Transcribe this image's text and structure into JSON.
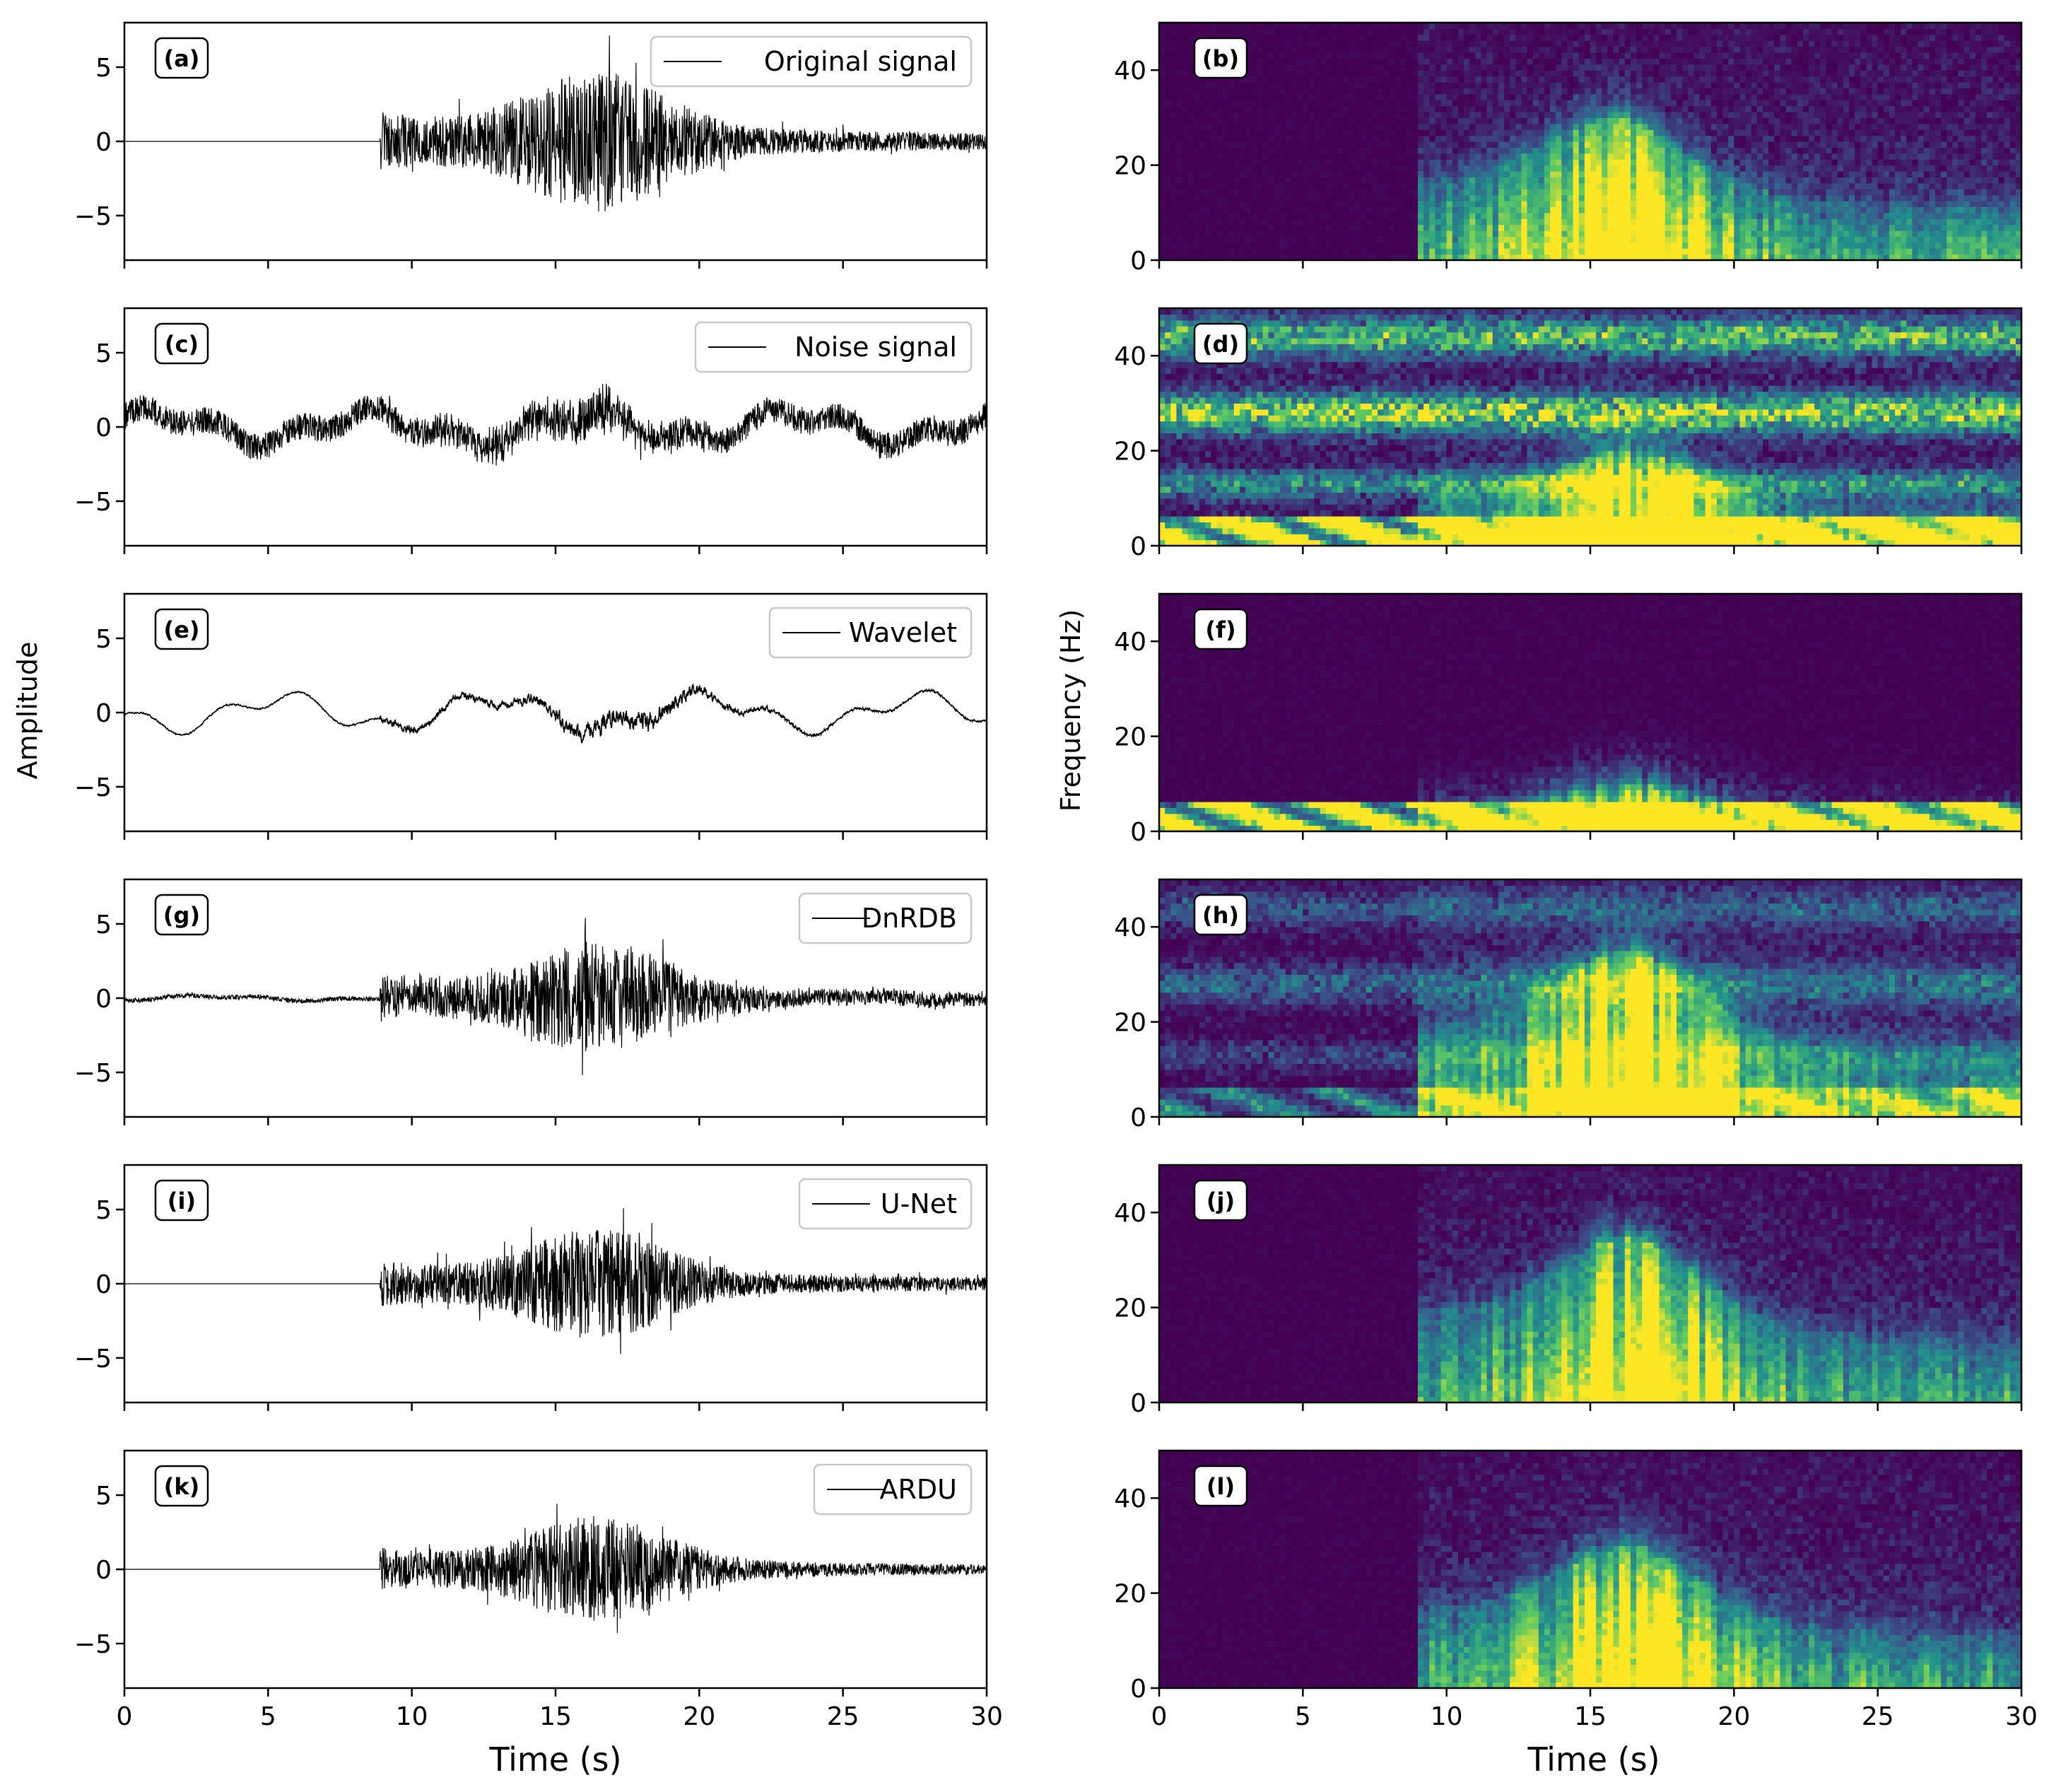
{
  "figure": {
    "x_axis_label": "Time (s)",
    "left_y_label": "Amplitude",
    "right_y_label": "Frequency (Hz)"
  },
  "chart_data": [
    {
      "type": "line",
      "panel": "(a)",
      "legend": "Original signal",
      "xlim": [
        0,
        30
      ],
      "ylim": [
        -8,
        8
      ],
      "x_ticks": [
        "0",
        "5",
        "10",
        "15",
        "20",
        "25",
        "30"
      ],
      "y_ticks": [
        "5",
        "0",
        "−5"
      ],
      "onset_s": 8.9,
      "peak_time_s": 16.5,
      "envelope_peak": 6.0,
      "decay_s": 7.0,
      "pre_noise": 0.0,
      "coda": 0.3,
      "bg_amp": 0.0,
      "hf": 0.9,
      "seed": 11
    },
    {
      "type": "line",
      "panel": "(c)",
      "legend": "Noise signal",
      "xlim": [
        0,
        30
      ],
      "ylim": [
        -8,
        8
      ],
      "x_ticks": [
        "0",
        "5",
        "10",
        "15",
        "20",
        "25",
        "30"
      ],
      "y_ticks": [
        "5",
        "0",
        "−5"
      ],
      "onset_s": 8.9,
      "peak_time_s": 16.0,
      "envelope_peak": 1.2,
      "decay_s": 6.0,
      "pre_noise": 1.0,
      "coda": 0.0,
      "bg_amp": 1.0,
      "hf": 1.0,
      "seed": 23
    },
    {
      "type": "line",
      "panel": "(e)",
      "legend": "Wavelet",
      "xlim": [
        0,
        30
      ],
      "ylim": [
        -8,
        8
      ],
      "x_ticks": [
        "0",
        "5",
        "10",
        "15",
        "20",
        "25",
        "30"
      ],
      "y_ticks": [
        "5",
        "0",
        "−5"
      ],
      "onset_s": 8.9,
      "peak_time_s": 17.5,
      "envelope_peak": 1.8,
      "decay_s": 6.0,
      "pre_noise": 0.1,
      "coda": 0.0,
      "bg_amp": 1.1,
      "hf": 0.25,
      "seed": 37
    },
    {
      "type": "line",
      "panel": "(g)",
      "legend": "DnRDB",
      "xlim": [
        0,
        30
      ],
      "ylim": [
        -8,
        8
      ],
      "x_ticks": [
        "0",
        "5",
        "10",
        "15",
        "20",
        "25",
        "30"
      ],
      "y_ticks": [
        "5",
        "0",
        "−5"
      ],
      "onset_s": 8.9,
      "peak_time_s": 16.5,
      "envelope_peak": 5.0,
      "decay_s": 6.0,
      "pre_noise": 0.18,
      "coda": 0.2,
      "bg_amp": 0.15,
      "hf": 0.85,
      "seed": 41
    },
    {
      "type": "line",
      "panel": "(i)",
      "legend": "U-Net",
      "xlim": [
        0,
        30
      ],
      "ylim": [
        -8,
        8
      ],
      "x_ticks": [
        "0",
        "5",
        "10",
        "15",
        "20",
        "25",
        "30"
      ],
      "y_ticks": [
        "5",
        "0",
        "−5"
      ],
      "onset_s": 8.9,
      "peak_time_s": 16.5,
      "envelope_peak": 5.0,
      "decay_s": 6.0,
      "pre_noise": 0.0,
      "coda": 0.25,
      "bg_amp": 0.0,
      "hf": 0.85,
      "seed": 53
    },
    {
      "type": "line",
      "panel": "(k)",
      "legend": "ARDU",
      "xlim": [
        0,
        30
      ],
      "ylim": [
        -8,
        8
      ],
      "x_ticks": [
        "0",
        "5",
        "10",
        "15",
        "20",
        "25",
        "30"
      ],
      "y_ticks": [
        "5",
        "0",
        "−5"
      ],
      "onset_s": 8.9,
      "peak_time_s": 16.5,
      "envelope_peak": 5.0,
      "decay_s": 5.0,
      "pre_noise": 0.0,
      "coda": 0.12,
      "bg_amp": 0.0,
      "hf": 0.85,
      "seed": 67
    },
    {
      "type": "heatmap",
      "panel": "(b)",
      "colormap": "viridis",
      "xlim": [
        0,
        30
      ],
      "ylim": [
        0,
        50
      ],
      "x_ticks": [
        "0",
        "5",
        "10",
        "15",
        "20",
        "25",
        "30"
      ],
      "y_ticks": [
        "40",
        "20",
        "0"
      ],
      "onset_s": 9.0,
      "signal_fmax_hz": 30,
      "peak_time_s": 16.0,
      "noise_low": 0,
      "noise_bands": 0,
      "seed": 101
    },
    {
      "type": "heatmap",
      "panel": "(d)",
      "colormap": "viridis",
      "xlim": [
        0,
        30
      ],
      "ylim": [
        0,
        50
      ],
      "x_ticks": [
        "0",
        "5",
        "10",
        "15",
        "20",
        "25",
        "30"
      ],
      "y_ticks": [
        "40",
        "20",
        "0"
      ],
      "onset_s": 9.0,
      "signal_fmax_hz": 20,
      "peak_time_s": 16.5,
      "noise_low": 1,
      "noise_bands": 1,
      "seed": 103
    },
    {
      "type": "heatmap",
      "panel": "(f)",
      "colormap": "viridis",
      "xlim": [
        0,
        30
      ],
      "ylim": [
        0,
        50
      ],
      "x_ticks": [
        "0",
        "5",
        "10",
        "15",
        "20",
        "25",
        "30"
      ],
      "y_ticks": [
        "40",
        "20",
        "0"
      ],
      "onset_s": 9.0,
      "signal_fmax_hz": 10,
      "peak_time_s": 16.5,
      "noise_low": 1,
      "noise_bands": 0,
      "seed": 107
    },
    {
      "type": "heatmap",
      "panel": "(h)",
      "colormap": "viridis",
      "xlim": [
        0,
        30
      ],
      "ylim": [
        0,
        50
      ],
      "x_ticks": [
        "0",
        "5",
        "10",
        "15",
        "20",
        "25",
        "30"
      ],
      "y_ticks": [
        "40",
        "20",
        "0"
      ],
      "onset_s": 9.0,
      "signal_fmax_hz": 35,
      "peak_time_s": 16.5,
      "noise_low": 0.35,
      "noise_bands": 0.4,
      "seed": 109
    },
    {
      "type": "heatmap",
      "panel": "(j)",
      "colormap": "viridis",
      "xlim": [
        0,
        30
      ],
      "ylim": [
        0,
        50
      ],
      "x_ticks": [
        "0",
        "5",
        "10",
        "15",
        "20",
        "25",
        "30"
      ],
      "y_ticks": [
        "40",
        "20",
        "0"
      ],
      "onset_s": 9.0,
      "signal_fmax_hz": 35,
      "peak_time_s": 16.5,
      "noise_low": 0,
      "noise_bands": 0,
      "seed": 113
    },
    {
      "type": "heatmap",
      "panel": "(l)",
      "colormap": "viridis",
      "xlim": [
        0,
        30
      ],
      "ylim": [
        0,
        50
      ],
      "x_ticks": [
        "0",
        "5",
        "10",
        "15",
        "20",
        "25",
        "30"
      ],
      "y_ticks": [
        "40",
        "20",
        "0"
      ],
      "onset_s": 9.0,
      "signal_fmax_hz": 30,
      "peak_time_s": 16.5,
      "noise_low": 0,
      "noise_bands": 0,
      "seed": 127
    }
  ]
}
